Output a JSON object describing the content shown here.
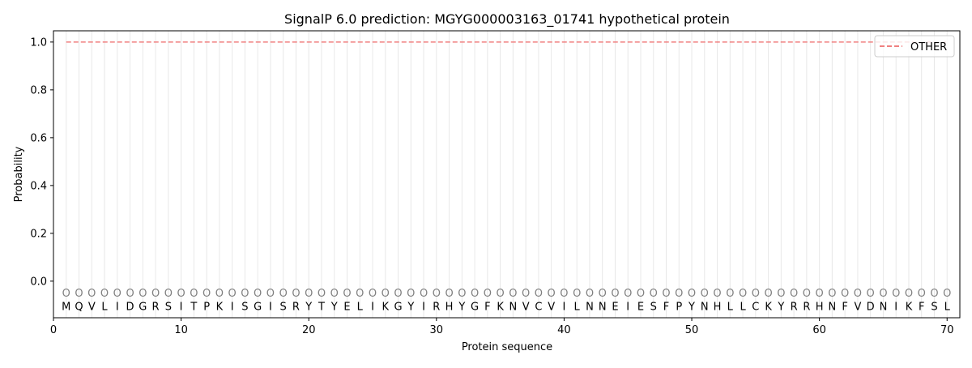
{
  "chart_data": {
    "type": "line",
    "title": "SignalP 6.0 prediction: MGYG000003163_01741 hypothetical protein",
    "xlabel": "Protein sequence",
    "ylabel": "Probability",
    "xlim": [
      0,
      71
    ],
    "ylim": [
      -0.153,
      1.047
    ],
    "xticks": [
      0,
      10,
      20,
      30,
      40,
      50,
      60,
      70
    ],
    "yticks": [
      "0.0",
      "0.2",
      "0.4",
      "0.6",
      "0.8",
      "1.0"
    ],
    "grid": "vertical lines at each residue",
    "legend_placement": "top-right",
    "sequence": [
      "M",
      "Q",
      "V",
      "L",
      "I",
      "D",
      "G",
      "R",
      "S",
      "I",
      "T",
      "P",
      "K",
      "I",
      "S",
      "G",
      "I",
      "S",
      "R",
      "Y",
      "T",
      "Y",
      "E",
      "L",
      "I",
      "K",
      "G",
      "Y",
      "I",
      "R",
      "H",
      "Y",
      "G",
      "F",
      "K",
      "N",
      "V",
      "C",
      "V",
      "I",
      "L",
      "N",
      "N",
      "E",
      "I",
      "E",
      "S",
      "F",
      "P",
      "Y",
      "N",
      "H",
      "L",
      "L",
      "C",
      "K",
      "Y",
      "R",
      "R",
      "H",
      "N",
      "F",
      "V",
      "D",
      "N",
      "I",
      "K",
      "F",
      "S",
      "L"
    ],
    "predicted_label": "O",
    "series": [
      {
        "name": "OTHER",
        "color": "#f08080",
        "style": "dashed",
        "x_range": [
          1,
          70
        ],
        "value": 1.0
      }
    ]
  }
}
